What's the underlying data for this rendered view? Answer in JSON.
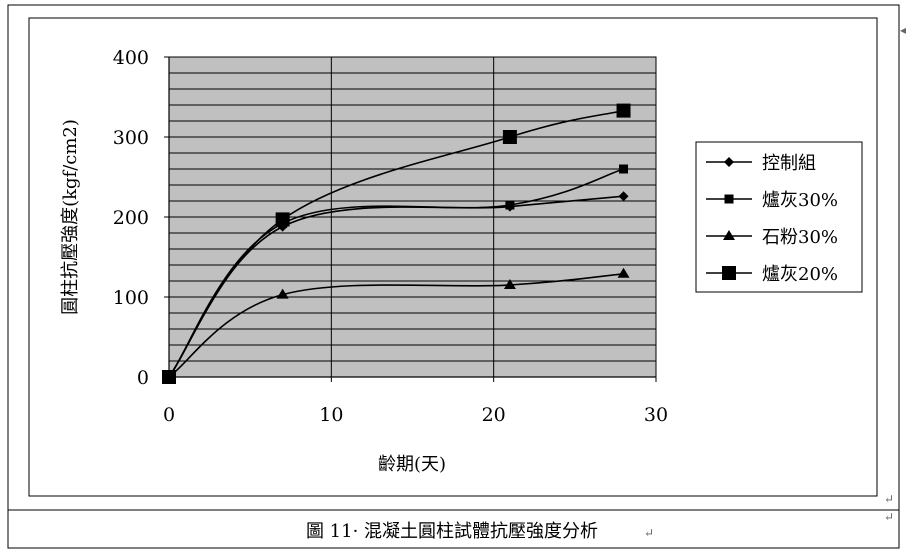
{
  "chart_data": {
    "type": "line",
    "title": "",
    "xlabel": "齡期(天)",
    "ylabel": "圓柱抗壓強度(kgf/cm2)",
    "xlim": [
      0,
      30
    ],
    "ylim": [
      0,
      400
    ],
    "x_ticks": [
      "0",
      "10",
      "20",
      "30"
    ],
    "y_ticks": [
      "0",
      "100",
      "200",
      "300",
      "400"
    ],
    "grid": true,
    "legend_position": "right",
    "plot_background": "#c0c0c0",
    "series": [
      {
        "name": "控制組",
        "marker": "diamond",
        "x": [
          0,
          7,
          21,
          28
        ],
        "y": [
          0,
          188,
          213,
          226
        ]
      },
      {
        "name": "爐灰30%",
        "marker": "square-small",
        "x": [
          0,
          7,
          21,
          28
        ],
        "y": [
          0,
          192,
          215,
          260
        ]
      },
      {
        "name": "石粉30%",
        "marker": "triangle",
        "x": [
          0,
          7,
          21,
          28
        ],
        "y": [
          0,
          103,
          115,
          129
        ]
      },
      {
        "name": "爐灰20%",
        "marker": "square-large",
        "x": [
          0,
          7,
          21,
          28
        ],
        "y": [
          0,
          197,
          300,
          333
        ]
      }
    ]
  },
  "caption": "圖 11· 混凝土圓柱試體抗壓強度分析",
  "format_marks": {
    "paragraph": "↵",
    "arrow": "◂"
  }
}
